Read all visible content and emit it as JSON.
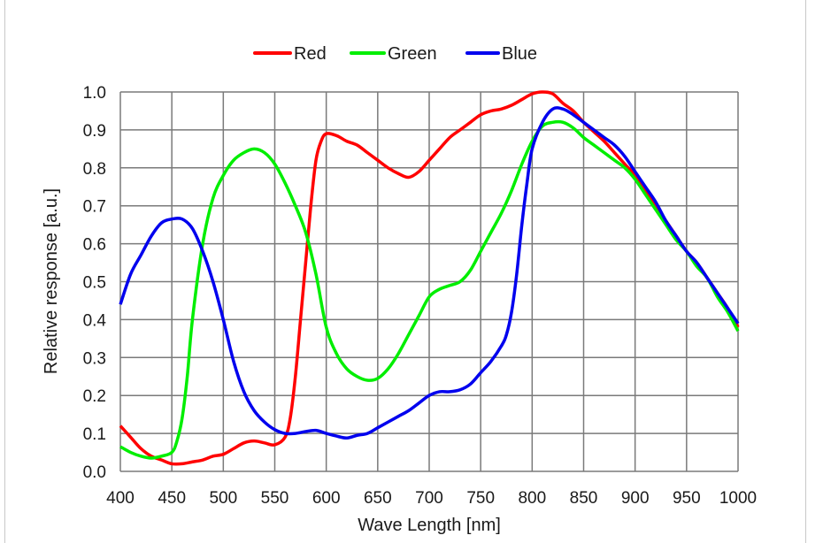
{
  "chart_data": {
    "type": "line",
    "title": "",
    "xlabel": "Wave Length [nm]",
    "ylabel": "Relative response [a.u.]",
    "xlim": [
      400,
      1000
    ],
    "ylim": [
      0,
      1.0
    ],
    "xticks": [
      "400",
      "450",
      "500",
      "550",
      "600",
      "650",
      "700",
      "750",
      "800",
      "850",
      "900",
      "950",
      "1000"
    ],
    "yticks": [
      "0.0",
      "0.1",
      "0.2",
      "0.3",
      "0.4",
      "0.5",
      "0.6",
      "0.7",
      "0.8",
      "0.9",
      "1.0"
    ],
    "grid": true,
    "legend_position": "top-center",
    "series": [
      {
        "name": "Red",
        "color": "#ff0000",
        "x": [
          400,
          410,
          420,
          430,
          440,
          450,
          460,
          470,
          480,
          490,
          500,
          510,
          520,
          530,
          540,
          550,
          560,
          565,
          570,
          575,
          580,
          585,
          590,
          595,
          600,
          610,
          620,
          630,
          640,
          650,
          660,
          670,
          680,
          690,
          700,
          710,
          720,
          730,
          740,
          750,
          760,
          770,
          780,
          790,
          800,
          810,
          820,
          830,
          840,
          850,
          860,
          870,
          880,
          890,
          900,
          910,
          920,
          930,
          940,
          950,
          960,
          970,
          980,
          990,
          1000
        ],
        "y": [
          0.12,
          0.09,
          0.06,
          0.04,
          0.03,
          0.02,
          0.02,
          0.025,
          0.03,
          0.04,
          0.045,
          0.06,
          0.075,
          0.08,
          0.075,
          0.07,
          0.09,
          0.14,
          0.25,
          0.4,
          0.55,
          0.7,
          0.82,
          0.87,
          0.89,
          0.885,
          0.87,
          0.86,
          0.84,
          0.82,
          0.8,
          0.785,
          0.775,
          0.79,
          0.82,
          0.85,
          0.88,
          0.9,
          0.92,
          0.94,
          0.95,
          0.955,
          0.965,
          0.98,
          0.995,
          1.0,
          0.995,
          0.97,
          0.95,
          0.92,
          0.895,
          0.87,
          0.84,
          0.81,
          0.78,
          0.74,
          0.7,
          0.66,
          0.62,
          0.58,
          0.55,
          0.51,
          0.47,
          0.43,
          0.38
        ]
      },
      {
        "name": "Green",
        "color": "#00ee00",
        "x": [
          400,
          410,
          420,
          430,
          440,
          450,
          455,
          460,
          465,
          470,
          480,
          490,
          500,
          510,
          520,
          530,
          540,
          550,
          560,
          570,
          580,
          590,
          600,
          610,
          620,
          630,
          640,
          650,
          660,
          670,
          680,
          690,
          700,
          710,
          720,
          730,
          740,
          750,
          760,
          770,
          780,
          790,
          800,
          810,
          820,
          830,
          840,
          850,
          860,
          870,
          880,
          890,
          900,
          910,
          920,
          930,
          940,
          950,
          960,
          970,
          980,
          990,
          1000
        ],
        "y": [
          0.065,
          0.05,
          0.04,
          0.035,
          0.04,
          0.05,
          0.08,
          0.14,
          0.25,
          0.4,
          0.6,
          0.72,
          0.78,
          0.82,
          0.84,
          0.85,
          0.84,
          0.81,
          0.76,
          0.7,
          0.63,
          0.52,
          0.38,
          0.31,
          0.27,
          0.25,
          0.24,
          0.245,
          0.27,
          0.31,
          0.36,
          0.41,
          0.46,
          0.48,
          0.49,
          0.5,
          0.53,
          0.58,
          0.63,
          0.68,
          0.74,
          0.81,
          0.87,
          0.91,
          0.92,
          0.92,
          0.905,
          0.88,
          0.86,
          0.84,
          0.82,
          0.8,
          0.77,
          0.73,
          0.69,
          0.65,
          0.61,
          0.58,
          0.54,
          0.51,
          0.46,
          0.42,
          0.37
        ]
      },
      {
        "name": "Blue",
        "color": "#0000ee",
        "x": [
          400,
          410,
          420,
          430,
          440,
          450,
          460,
          470,
          480,
          490,
          500,
          510,
          520,
          530,
          540,
          550,
          560,
          570,
          580,
          590,
          600,
          610,
          620,
          630,
          640,
          650,
          660,
          670,
          680,
          690,
          700,
          710,
          720,
          730,
          740,
          750,
          760,
          770,
          775,
          780,
          785,
          790,
          795,
          800,
          810,
          820,
          830,
          840,
          850,
          860,
          870,
          880,
          890,
          900,
          910,
          920,
          930,
          940,
          950,
          960,
          970,
          980,
          990,
          1000
        ],
        "y": [
          0.44,
          0.52,
          0.57,
          0.62,
          0.655,
          0.665,
          0.665,
          0.64,
          0.58,
          0.5,
          0.4,
          0.29,
          0.21,
          0.16,
          0.13,
          0.11,
          0.1,
          0.1,
          0.105,
          0.108,
          0.1,
          0.093,
          0.088,
          0.095,
          0.1,
          0.115,
          0.13,
          0.145,
          0.16,
          0.18,
          0.2,
          0.21,
          0.21,
          0.215,
          0.23,
          0.26,
          0.29,
          0.33,
          0.36,
          0.42,
          0.52,
          0.65,
          0.76,
          0.85,
          0.92,
          0.955,
          0.955,
          0.94,
          0.92,
          0.9,
          0.88,
          0.86,
          0.83,
          0.79,
          0.75,
          0.71,
          0.66,
          0.62,
          0.58,
          0.55,
          0.51,
          0.47,
          0.43,
          0.39
        ]
      }
    ]
  }
}
